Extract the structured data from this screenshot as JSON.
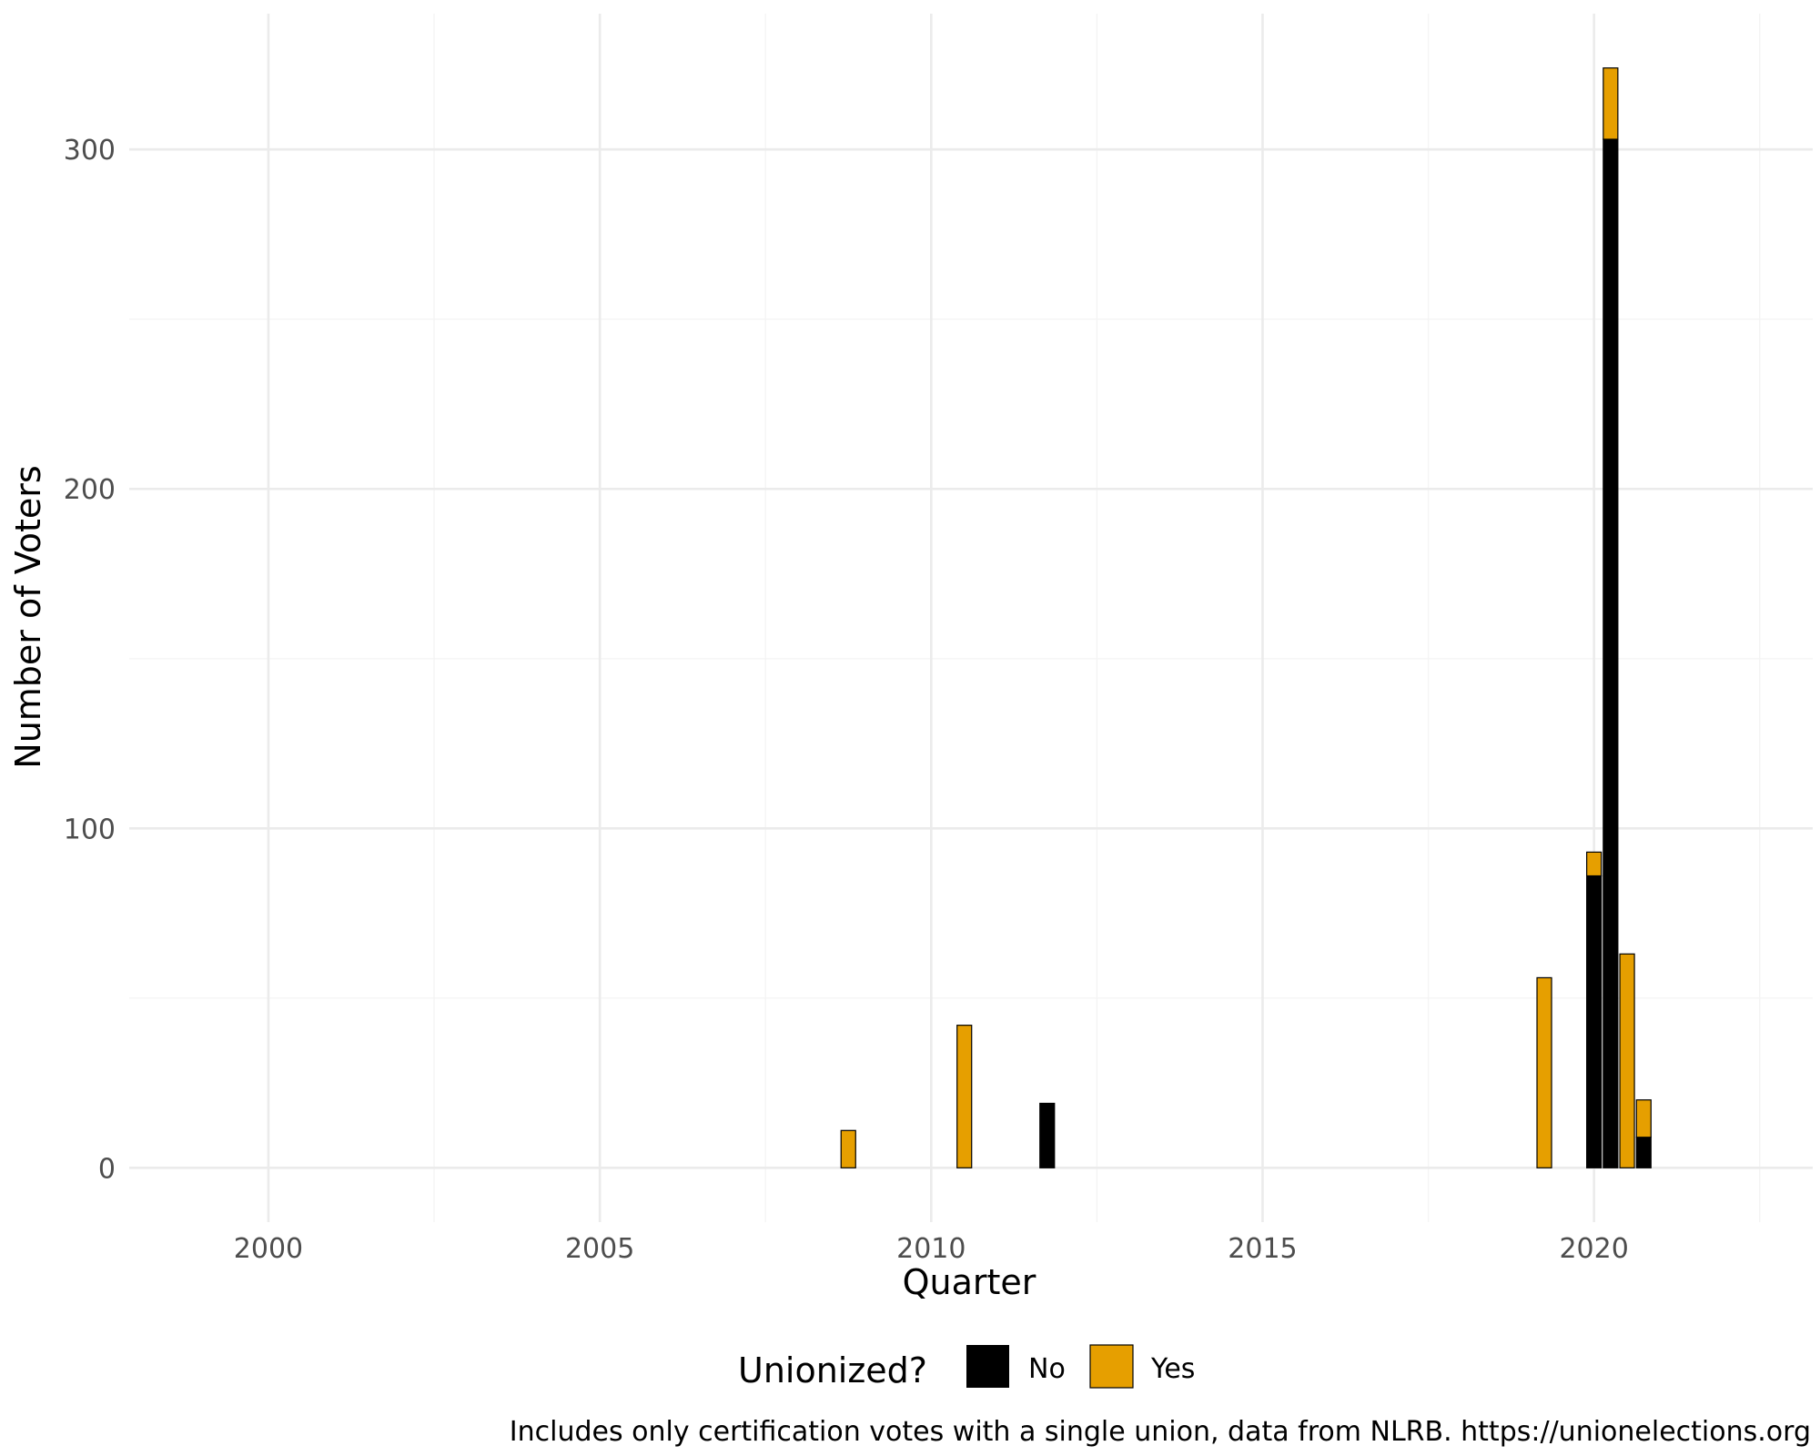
{
  "chart_data": {
    "type": "bar",
    "stacked": true,
    "xlabel": "Quarter",
    "ylabel": "Number of Voters",
    "caption": "Includes only certification votes with a single union, data from NLRB. https://unionelections.org",
    "xlim": [
      1997.9,
      2023.3
    ],
    "ylim": [
      -16,
      340
    ],
    "x_ticks": [
      "2000",
      "2005",
      "2010",
      "2015",
      "2020"
    ],
    "y_ticks": [
      "0",
      "100",
      "200",
      "300"
    ],
    "legend": {
      "title": "Unionized?",
      "position": "bottom",
      "entries": [
        {
          "label": "No",
          "color": "#000000"
        },
        {
          "label": "Yes",
          "color": "#E69F00"
        }
      ]
    },
    "series": [
      {
        "name": "No",
        "color": "#000000"
      },
      {
        "name": "Yes",
        "color": "#E69F00"
      }
    ],
    "bars": [
      {
        "quarter": "2008 Q4",
        "x": 2008.75,
        "no": 0,
        "yes": 11
      },
      {
        "quarter": "2010 Q3",
        "x": 2010.5,
        "no": 0,
        "yes": 42
      },
      {
        "quarter": "2011 Q4",
        "x": 2011.75,
        "no": 19,
        "yes": 0
      },
      {
        "quarter": "2019 Q2",
        "x": 2019.25,
        "no": 0,
        "yes": 56
      },
      {
        "quarter": "2020 Q1",
        "x": 2020.0,
        "no": 86,
        "yes": 7
      },
      {
        "quarter": "2020 Q2",
        "x": 2020.25,
        "no": 303,
        "yes": 21
      },
      {
        "quarter": "2020 Q3",
        "x": 2020.5,
        "no": 0,
        "yes": 63
      },
      {
        "quarter": "2020 Q4",
        "x": 2020.75,
        "no": 9,
        "yes": 11
      }
    ]
  }
}
